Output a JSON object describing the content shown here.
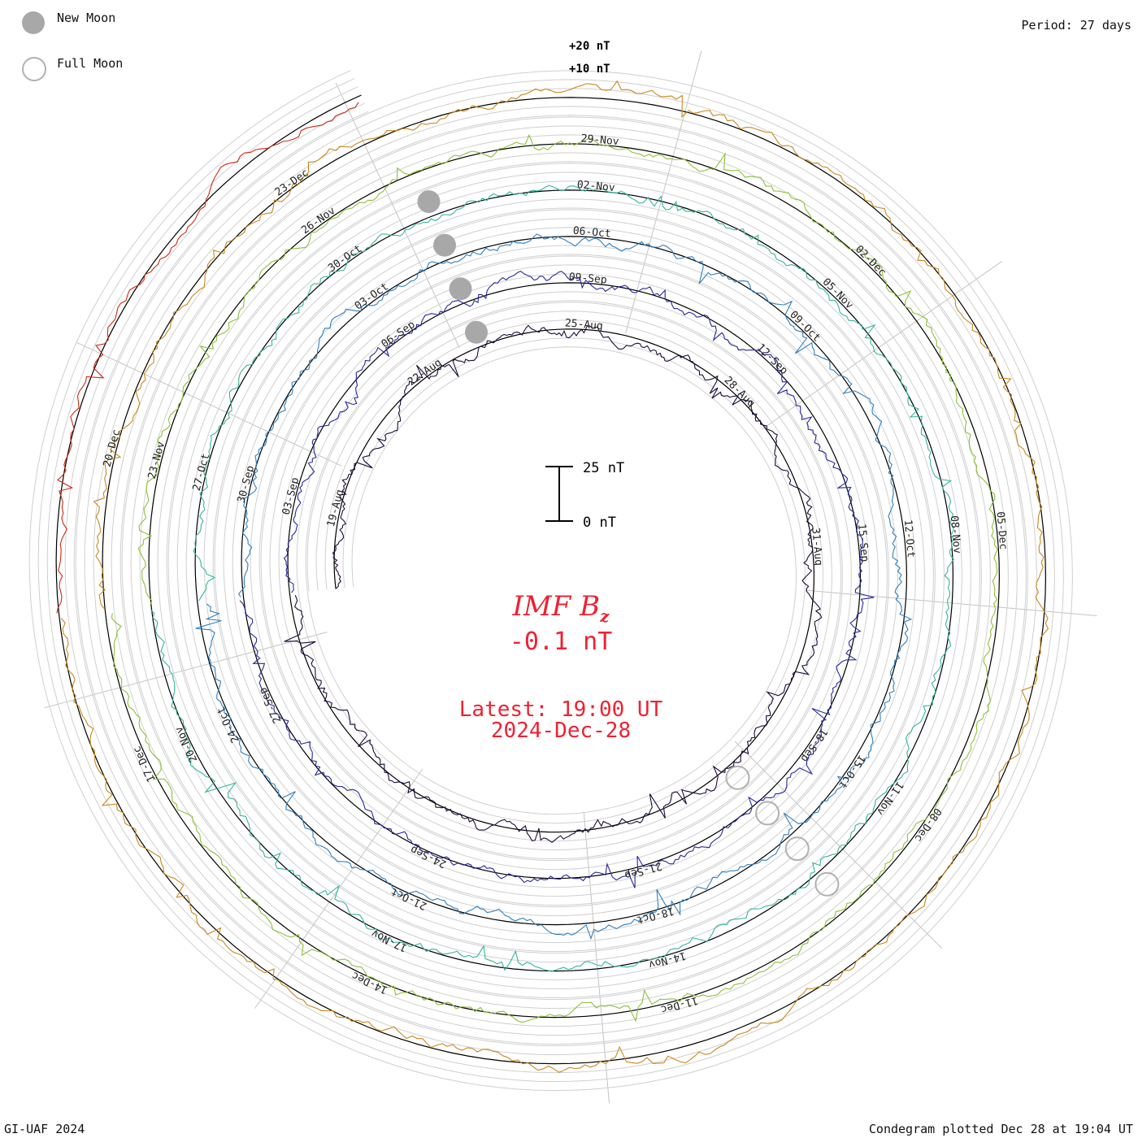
{
  "legend": {
    "new_moon": "New Moon",
    "full_moon": "Full Moon",
    "new_moon_color": "#a8a8a8",
    "full_moon_color": "#b0b0b0"
  },
  "period": "Period: 27 days",
  "scale": {
    "outer_top": "+20 nT",
    "outer_mid": "+10 nT",
    "bar_top": "25 nT",
    "bar_bottom": "0 nT"
  },
  "center": {
    "parameter": "IMF B",
    "parameter_sub": "z",
    "value": "-0.1 nT",
    "latest": "Latest: 19:00 UT",
    "date": "2024-Dec-28"
  },
  "footer": {
    "credit": "GI-UAF 2024",
    "plotted": "Condegram plotted Dec 28 at 19:04 UT"
  },
  "chart_data": {
    "type": "line",
    "title": "IMF Bz",
    "period_days": 27,
    "units": "nT",
    "rotations": [
      {
        "index": 0,
        "color": "#1c0a3a",
        "dates": [
          "19-Aug",
          "22-Aug",
          "25-Aug",
          "28-Aug",
          "31-Aug"
        ]
      },
      {
        "index": 1,
        "color": "#2626a0",
        "dates": [
          "03-Sep",
          "06-Sep",
          "09-Sep",
          "12-Sep",
          "15-Sep",
          "18-Sep",
          "21-Sep",
          "24-Sep",
          "27-Sep"
        ]
      },
      {
        "index": 2,
        "color": "#2f7fbe",
        "dates": [
          "30-Sep",
          "03-Oct",
          "06-Oct",
          "09-Oct",
          "12-Oct",
          "15-Oct",
          "18-Oct",
          "21-Oct",
          "24-Oct"
        ]
      },
      {
        "index": 3,
        "color": "#35b59a",
        "dates": [
          "27-Oct",
          "30-Oct",
          "02-Nov",
          "05-Nov",
          "08-Nov",
          "11-Nov",
          "14-Nov",
          "17-Nov",
          "20-Nov"
        ]
      },
      {
        "index": 4,
        "color": "#8cc03a",
        "dates": [
          "23-Nov",
          "26-Nov",
          "29-Nov",
          "02-Dec",
          "05-Dec",
          "08-Dec",
          "11-Dec",
          "14-Dec",
          "17-Dec"
        ]
      },
      {
        "index": 5,
        "color": "#c8881e",
        "dates": [
          "20-Dec",
          "23-Dec"
        ]
      },
      {
        "index": 6,
        "color": "#cc2a14",
        "dates": []
      }
    ],
    "new_moons": [
      "03-Sep",
      "02-Oct",
      "01-Nov",
      "01-Dec"
    ],
    "full_moons": [
      "18-Sep",
      "17-Oct",
      "15-Nov",
      "15-Dec"
    ],
    "latest_value": -0.1
  }
}
